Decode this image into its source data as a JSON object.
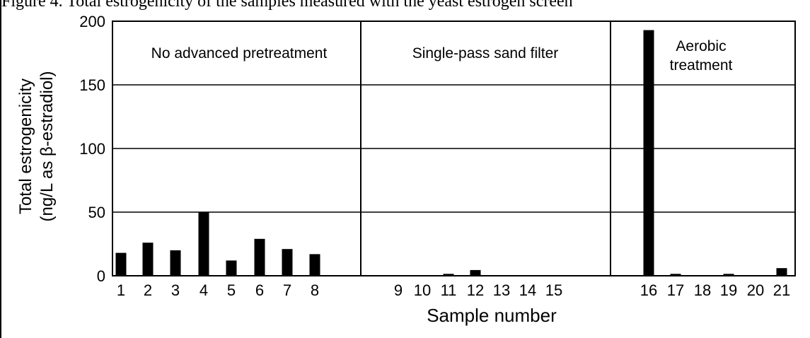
{
  "caption": "Figure 4. Total estrogenicity of the samples measured with the yeast estrogen screen",
  "chart_data": {
    "type": "bar",
    "categories": [
      "1",
      "2",
      "3",
      "4",
      "5",
      "6",
      "7",
      "8",
      "9",
      "10",
      "11",
      "12",
      "13",
      "14",
      "15",
      "16",
      "17",
      "18",
      "19",
      "20",
      "21"
    ],
    "values": [
      18,
      26,
      20,
      50,
      12,
      29,
      21,
      17,
      0,
      0,
      1.5,
      4.5,
      0,
      0,
      0,
      193,
      1.5,
      0,
      1.5,
      0,
      6
    ],
    "xlabel": "Sample number",
    "ylabel": [
      "Total estrogenicity",
      "(ng/L as β-estradiol)"
    ],
    "ylim": [
      0,
      200
    ],
    "yticks": [
      0,
      50,
      100,
      150,
      200
    ],
    "grid": true,
    "bar_color": "#000000",
    "groups": [
      {
        "label": [
          "No advanced pretreatment"
        ],
        "samples": [
          "1",
          "2",
          "3",
          "4",
          "5",
          "6",
          "7",
          "8"
        ]
      },
      {
        "label": [
          "Single-pass sand filter"
        ],
        "samples": [
          "9",
          "10",
          "11",
          "12",
          "13",
          "14",
          "15"
        ]
      },
      {
        "label": [
          "Aerobic",
          "treatment"
        ],
        "samples": [
          "16",
          "17",
          "18",
          "19",
          "20",
          "21"
        ]
      }
    ]
  }
}
